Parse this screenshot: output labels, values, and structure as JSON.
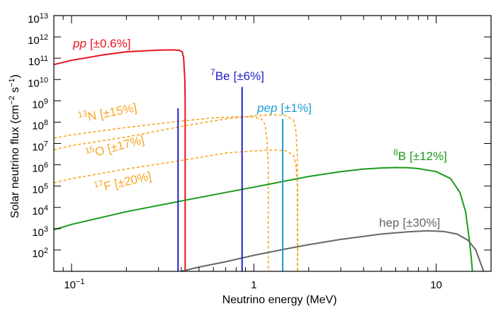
{
  "chart_data": {
    "type": "line",
    "title": "",
    "xlabel": "Neutrino energy (MeV)",
    "ylabel_parts": [
      "Solar neutrino flux (cm",
      "−2",
      " s",
      "−1",
      ")"
    ],
    "xscale": "log",
    "yscale": "log",
    "xlim": [
      0.08,
      20
    ],
    "ylim_exp": [
      1,
      13
    ],
    "x_ticks": [
      {
        "value": 0.1,
        "base": "10",
        "exp": "−1"
      },
      {
        "value": 1,
        "base": "1",
        "exp": ""
      },
      {
        "value": 10,
        "base": "10",
        "exp": ""
      }
    ],
    "y_ticks": [
      {
        "exp_value": 2,
        "base": "10",
        "exp": "2"
      },
      {
        "exp_value": 3,
        "base": "10",
        "exp": "3"
      },
      {
        "exp_value": 4,
        "base": "10",
        "exp": "4"
      },
      {
        "exp_value": 5,
        "base": "10",
        "exp": "5"
      },
      {
        "exp_value": 6,
        "base": "10",
        "exp": "6"
      },
      {
        "exp_value": 7,
        "base": "10",
        "exp": "7"
      },
      {
        "exp_value": 8,
        "base": "10",
        "exp": "8"
      },
      {
        "exp_value": 9,
        "base": "10",
        "exp": "9"
      },
      {
        "exp_value": 10,
        "base": "10",
        "exp": "10"
      },
      {
        "exp_value": 11,
        "base": "10",
        "exp": "11"
      },
      {
        "exp_value": 12,
        "base": "10",
        "exp": "12"
      },
      {
        "exp_value": 13,
        "base": "10",
        "exp": "13"
      }
    ],
    "series": [
      {
        "id": "pp",
        "name": "pp",
        "sup": "",
        "name_italic": true,
        "uncertainty": "[±0.6%]",
        "color": "#e8141c",
        "style": "solid",
        "kind": "curve",
        "points": [
          [
            0.08,
            10.7
          ],
          [
            0.1,
            10.9
          ],
          [
            0.15,
            11.16
          ],
          [
            0.2,
            11.3
          ],
          [
            0.3,
            11.38
          ],
          [
            0.36,
            11.39
          ],
          [
            0.39,
            11.37
          ],
          [
            0.405,
            11.3
          ],
          [
            0.412,
            11.0
          ],
          [
            0.418,
            10.0
          ],
          [
            0.42,
            9.0
          ],
          [
            0.42,
            1.0
          ]
        ]
      },
      {
        "id": "n13",
        "name": "N",
        "sup": "13",
        "name_italic": false,
        "uncertainty": "[±15%]",
        "color": "#f5a623",
        "style": "dashed",
        "kind": "curve",
        "points": [
          [
            0.08,
            7.25
          ],
          [
            0.1,
            7.4
          ],
          [
            0.2,
            7.75
          ],
          [
            0.4,
            8.05
          ],
          [
            0.6,
            8.2
          ],
          [
            0.8,
            8.25
          ],
          [
            1.0,
            8.25
          ],
          [
            1.1,
            8.15
          ],
          [
            1.15,
            7.9
          ],
          [
            1.18,
            7.2
          ],
          [
            1.2,
            6.0
          ],
          [
            1.2,
            1.0
          ]
        ]
      },
      {
        "id": "o15",
        "name": "O",
        "sup": "15",
        "name_italic": false,
        "uncertainty": "[±17%]",
        "color": "#f5a623",
        "style": "dashed",
        "kind": "curve",
        "points": [
          [
            0.08,
            6.7
          ],
          [
            0.1,
            6.9
          ],
          [
            0.2,
            7.3
          ],
          [
            0.4,
            7.8
          ],
          [
            0.7,
            8.15
          ],
          [
            1.0,
            8.3
          ],
          [
            1.3,
            8.35
          ],
          [
            1.5,
            8.3
          ],
          [
            1.65,
            8.1
          ],
          [
            1.7,
            7.6
          ],
          [
            1.73,
            6.5
          ],
          [
            1.735,
            1.0
          ]
        ]
      },
      {
        "id": "f17",
        "name": "F",
        "sup": "17",
        "name_italic": false,
        "uncertainty": "[±20%]",
        "color": "#f5a623",
        "style": "dashed",
        "kind": "curve",
        "points": [
          [
            0.08,
            5.15
          ],
          [
            0.1,
            5.35
          ],
          [
            0.2,
            5.8
          ],
          [
            0.4,
            6.2
          ],
          [
            0.7,
            6.55
          ],
          [
            1.0,
            6.65
          ],
          [
            1.3,
            6.7
          ],
          [
            1.5,
            6.65
          ],
          [
            1.65,
            6.45
          ],
          [
            1.7,
            6.0
          ],
          [
            1.74,
            5.0
          ],
          [
            1.74,
            1.0
          ]
        ]
      },
      {
        "id": "b8",
        "name": "B",
        "sup": "8",
        "name_italic": false,
        "uncertainty": "[±12%]",
        "color": "#1a9a1a",
        "style": "solid",
        "kind": "curve",
        "points": [
          [
            0.08,
            2.95
          ],
          [
            0.1,
            3.2
          ],
          [
            0.2,
            3.8
          ],
          [
            0.4,
            4.3
          ],
          [
            0.7,
            4.7
          ],
          [
            1.0,
            4.95
          ],
          [
            2.0,
            5.45
          ],
          [
            3.0,
            5.68
          ],
          [
            4.0,
            5.8
          ],
          [
            5.0,
            5.85
          ],
          [
            6.0,
            5.87
          ],
          [
            7.0,
            5.86
          ],
          [
            8.0,
            5.82
          ],
          [
            10.0,
            5.68
          ],
          [
            12.0,
            5.35
          ],
          [
            13.5,
            4.7
          ],
          [
            14.5,
            3.8
          ],
          [
            15.2,
            2.5
          ],
          [
            15.6,
            1.6
          ],
          [
            15.8,
            1.0
          ]
        ]
      },
      {
        "id": "hep",
        "name": "hep",
        "sup": "",
        "name_italic": false,
        "uncertainty": "[±30%]",
        "color": "#666666",
        "style": "solid",
        "kind": "curve",
        "points": [
          [
            0.4,
            1.0
          ],
          [
            0.5,
            1.2
          ],
          [
            0.7,
            1.45
          ],
          [
            1.0,
            1.75
          ],
          [
            1.5,
            2.05
          ],
          [
            2.0,
            2.25
          ],
          [
            3.0,
            2.5
          ],
          [
            5.0,
            2.75
          ],
          [
            7.0,
            2.85
          ],
          [
            9.0,
            2.9
          ],
          [
            11.0,
            2.87
          ],
          [
            13.0,
            2.75
          ],
          [
            15.0,
            2.45
          ],
          [
            16.5,
            2.0
          ],
          [
            17.5,
            1.4
          ],
          [
            18.2,
            1.0
          ]
        ]
      },
      {
        "id": "be7_low",
        "name": "",
        "sup": "",
        "name_italic": false,
        "uncertainty": "",
        "color": "#1d1dcc",
        "style": "solid",
        "kind": "line",
        "energy": 0.384,
        "log_flux": 8.65
      },
      {
        "id": "be7",
        "name": "Be",
        "sup": "7",
        "name_italic": false,
        "uncertainty": "[±6%]",
        "color": "#1d1dcc",
        "style": "solid",
        "kind": "line",
        "energy": 0.862,
        "log_flux": 9.65
      },
      {
        "id": "pep",
        "name": "pep",
        "sup": "",
        "name_italic": true,
        "uncertainty": "[±1%]",
        "color": "#1d9ad6",
        "style": "solid",
        "kind": "line",
        "energy": 1.44,
        "log_flux": 8.15
      }
    ]
  }
}
